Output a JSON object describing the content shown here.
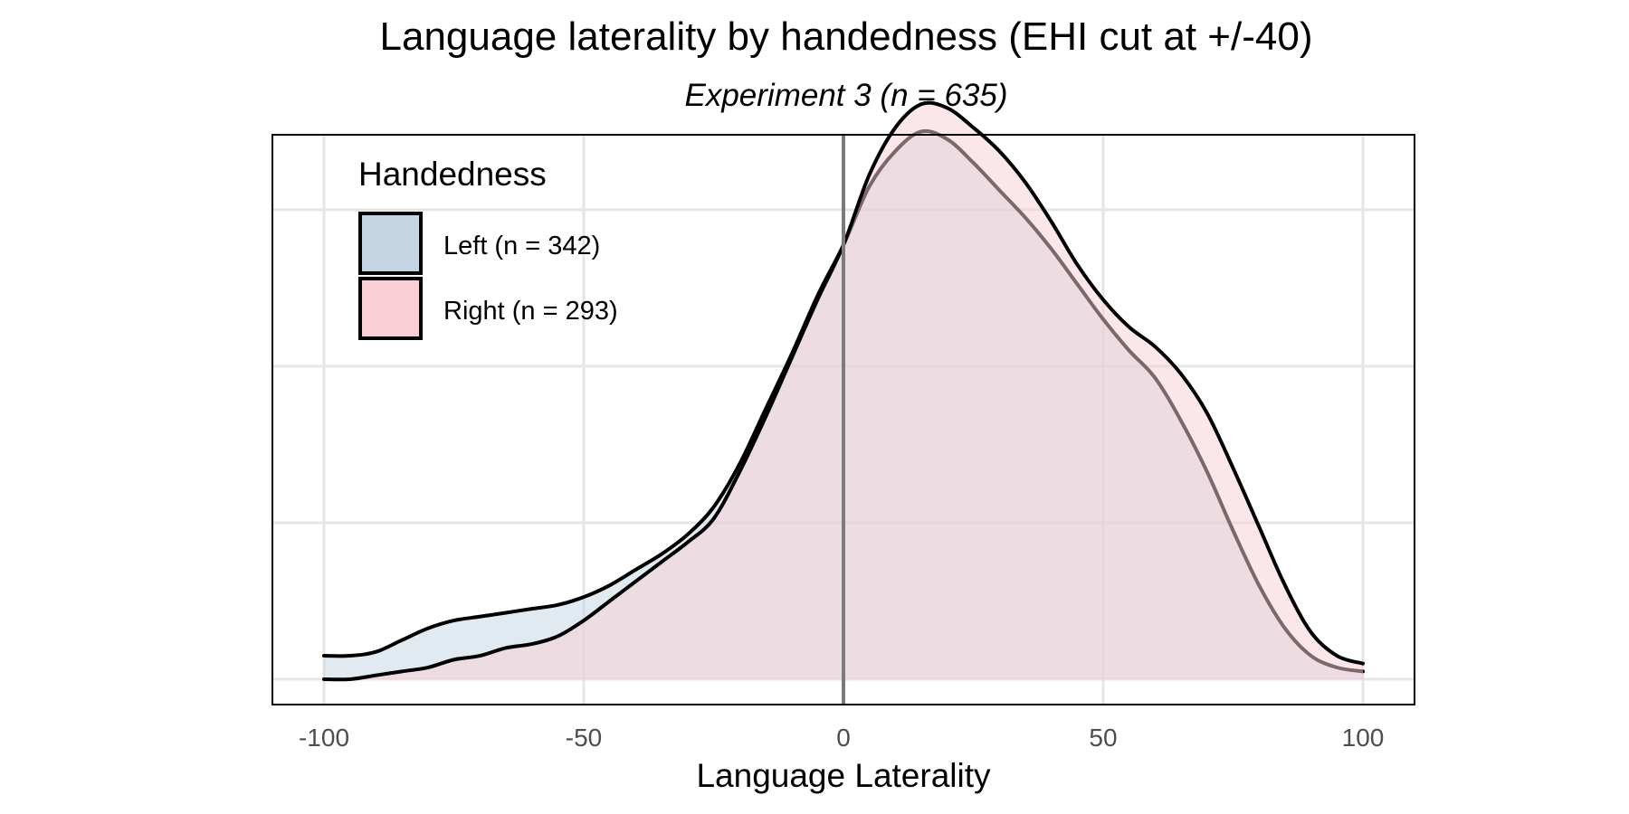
{
  "chart_data": {
    "type": "area",
    "title": "Language laterality by handedness (EHI cut at +/-40)",
    "subtitle": "Experiment 3 (n = 635)",
    "xlabel": "Language Laterality",
    "ylabel": "",
    "xlim": [
      -100,
      100
    ],
    "ylim": [
      0,
      0.0135
    ],
    "x_ticks": [
      -100,
      -50,
      0,
      50,
      100
    ],
    "x_tick_labels": [
      "-100",
      "-50",
      "0",
      "50",
      "100"
    ],
    "y_gridlines": [
      0,
      0.004,
      0.008,
      0.012
    ],
    "y_tick_labels_visible": false,
    "grid": true,
    "reference_line_x": 0,
    "legend": {
      "title": "Handedness",
      "placement": "top-left"
    },
    "series": [
      {
        "name": "Left (n = 342)",
        "color": "#c5d5e4",
        "x": [
          -100,
          -95,
          -90,
          -85,
          -80,
          -75,
          -70,
          -65,
          -60,
          -55,
          -50,
          -45,
          -40,
          -35,
          -30,
          -25,
          -20,
          -15,
          -10,
          -5,
          0,
          5,
          10,
          15,
          20,
          25,
          30,
          35,
          40,
          45,
          50,
          55,
          60,
          65,
          70,
          75,
          80,
          85,
          90,
          95,
          100
        ],
        "values": [
          0.0006,
          0.0006,
          0.0007,
          0.001,
          0.0013,
          0.0015,
          0.0016,
          0.0017,
          0.0018,
          0.0019,
          0.0021,
          0.0024,
          0.0028,
          0.0032,
          0.0037,
          0.0044,
          0.0055,
          0.0069,
          0.0083,
          0.0098,
          0.0111,
          0.0126,
          0.0135,
          0.014,
          0.0138,
          0.0132,
          0.0125,
          0.0118,
          0.011,
          0.0101,
          0.0092,
          0.0084,
          0.0077,
          0.0066,
          0.0053,
          0.0038,
          0.0024,
          0.0013,
          0.0006,
          0.0003,
          0.0002
        ]
      },
      {
        "name": "Right (n = 293)",
        "color": "#f8cfd6",
        "x": [
          -100,
          -95,
          -90,
          -85,
          -80,
          -75,
          -70,
          -65,
          -60,
          -55,
          -50,
          -45,
          -40,
          -35,
          -30,
          -25,
          -20,
          -15,
          -10,
          -5,
          0,
          5,
          10,
          15,
          20,
          25,
          30,
          35,
          40,
          45,
          50,
          55,
          60,
          65,
          70,
          75,
          80,
          85,
          90,
          95,
          100
        ],
        "values": [
          0.0,
          0.0,
          0.0001,
          0.0002,
          0.0003,
          0.0005,
          0.0006,
          0.0008,
          0.0009,
          0.0011,
          0.0015,
          0.002,
          0.0025,
          0.003,
          0.0035,
          0.0041,
          0.0053,
          0.0067,
          0.0082,
          0.0097,
          0.0111,
          0.0129,
          0.0141,
          0.0147,
          0.0146,
          0.0141,
          0.0135,
          0.0127,
          0.0117,
          0.0106,
          0.0097,
          0.009,
          0.0085,
          0.0078,
          0.0068,
          0.0054,
          0.0039,
          0.0024,
          0.0012,
          0.0006,
          0.0004
        ]
      }
    ]
  }
}
